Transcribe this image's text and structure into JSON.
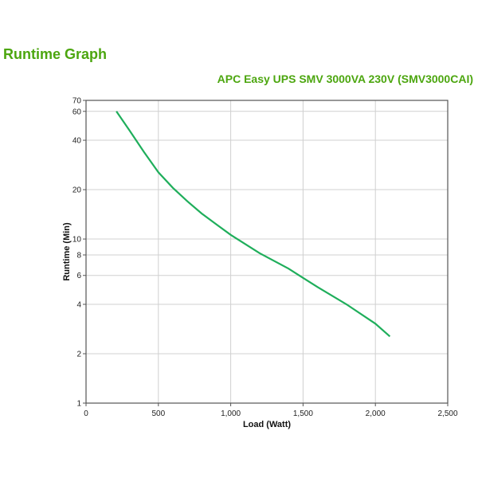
{
  "page": {
    "title": "Runtime Graph",
    "subtitle": "APC Easy UPS SMV 3000VA 230V (SMV3000CAI)"
  },
  "colors": {
    "title": "#4ca60f",
    "line": "#1fae5b",
    "grid": "#d0d0d0",
    "axis": "#555555"
  },
  "chart_data": {
    "type": "line",
    "title": "Runtime Graph",
    "subtitle": "APC Easy UPS SMV 3000VA 230V (SMV3000CAI)",
    "xlabel": "Load (Watt)",
    "ylabel": "Runtime (Min)",
    "xlim": [
      0,
      2500
    ],
    "ylim": [
      1,
      70
    ],
    "yscale": "log",
    "grid": true,
    "legend": null,
    "x_ticks": [
      0,
      500,
      1000,
      1500,
      2000,
      2500
    ],
    "x_tick_labels": [
      "0",
      "500",
      "1,000",
      "1,500",
      "2,000",
      "2,500"
    ],
    "y_ticks": [
      1,
      2,
      4,
      6,
      8,
      10,
      20,
      40,
      60,
      70
    ],
    "y_tick_labels": [
      "1",
      "2",
      "4",
      "6",
      "8",
      "10",
      "20",
      "40",
      "60",
      "70"
    ],
    "series": [
      {
        "name": "Runtime",
        "x": [
          210,
          300,
          400,
          500,
          600,
          700,
          800,
          900,
          1000,
          1200,
          1400,
          1500,
          1600,
          1800,
          2000,
          2100
        ],
        "y": [
          60,
          46,
          34,
          25.5,
          20.5,
          17,
          14.3,
          12.3,
          10.6,
          8.2,
          6.6,
          5.8,
          5.1,
          4.0,
          3.05,
          2.55
        ]
      }
    ]
  }
}
